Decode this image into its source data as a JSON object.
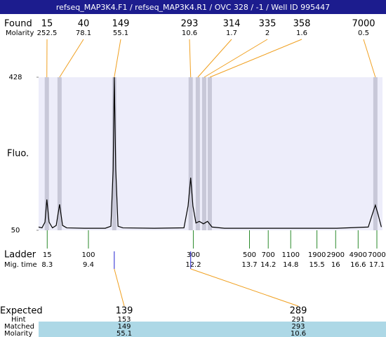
{
  "header": {
    "title": "refseq_MAP3K4.F1 / refseq_MAP3K4.R1 / OVC 328 / -1 / Well ID 995447"
  },
  "labels": {
    "found": "Found",
    "molarity": "Molarity",
    "fluo": "Fluo.",
    "ladder": "Ladder",
    "mig_time": "Mig. time",
    "expected": "Expected",
    "hint": "Hint",
    "matched": "Matched",
    "molarity_row": "Molarity"
  },
  "chart_data": {
    "type": "line",
    "color": "#000000",
    "xlim": [
      8.07,
      17.25
    ],
    "ylim": [
      50,
      428
    ],
    "yticks": [
      50,
      428
    ],
    "x": [
      8.07,
      8.16,
      8.24,
      8.29,
      8.35,
      8.44,
      8.54,
      8.63,
      8.71,
      8.82,
      9.29,
      9.85,
      10.0,
      10.06,
      10.09,
      10.13,
      10.19,
      10.32,
      11.16,
      11.95,
      12.06,
      12.13,
      12.19,
      12.27,
      12.36,
      12.47,
      12.58,
      12.7,
      13.03,
      14.53,
      16.03,
      16.87,
      16.98,
      17.06,
      17.13,
      17.22
    ],
    "values": [
      58,
      56,
      70,
      126,
      70,
      56,
      62,
      114,
      62,
      56,
      55,
      55,
      60,
      200,
      428,
      200,
      60,
      56,
      55,
      56,
      110,
      180,
      110,
      68,
      72,
      66,
      72,
      58,
      55,
      55,
      55,
      58,
      90,
      112,
      90,
      58
    ]
  },
  "found": {
    "sizes": [
      15,
      40,
      149,
      293,
      314,
      335,
      358,
      7000
    ],
    "molarity": [
      252.5,
      78.1,
      55.1,
      10.6,
      1.7,
      2,
      1.6,
      0.5
    ],
    "times": [
      8.29,
      8.63,
      10.09,
      12.13,
      12.32,
      12.49,
      12.64,
      17.06
    ]
  },
  "ladder": {
    "sizes": [
      15,
      100,
      300,
      500,
      700,
      1100,
      1900,
      2900,
      4900,
      7000
    ],
    "times": [
      8.3,
      9.4,
      12.2,
      13.7,
      14.2,
      14.8,
      15.5,
      16,
      16.6,
      17.1
    ]
  },
  "expected": {
    "expected": [
      139,
      289
    ],
    "hint": [
      153,
      291
    ],
    "matched": [
      149,
      293
    ],
    "molarity": [
      55.1,
      10.6
    ]
  }
}
